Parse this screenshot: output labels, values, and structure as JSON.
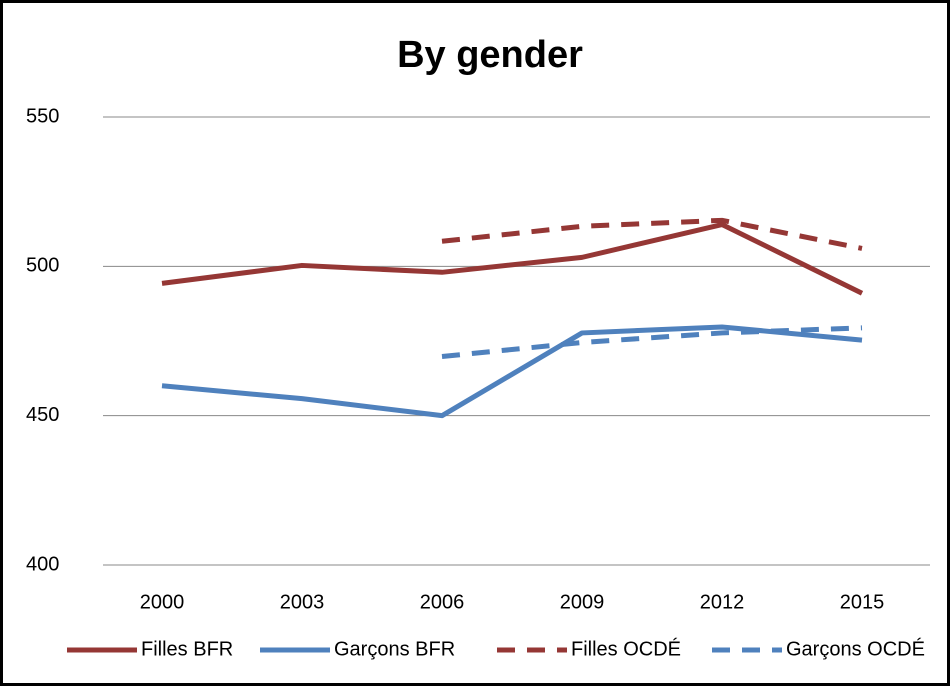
{
  "chart_data": {
    "type": "line",
    "title": "By gender",
    "categories": [
      "2000",
      "2003",
      "2006",
      "2009",
      "2012",
      "2015"
    ],
    "series": [
      {
        "name": "Filles BFR",
        "color": "#953735",
        "dash": false,
        "values": [
          494.3,
          500.3,
          498,
          503,
          514,
          491
        ]
      },
      {
        "name": "Garçons BFR",
        "color": "#4f81bd",
        "dash": false,
        "values": [
          460,
          455.7,
          450,
          477.7,
          479.7,
          475.3
        ]
      },
      {
        "name": "Filles OCDÉ",
        "color": "#953735",
        "dash": true,
        "values": [
          null,
          null,
          508.4,
          513.4,
          515.4,
          506
        ]
      },
      {
        "name": "Garçons OCDÉ",
        "color": "#4f81bd",
        "dash": true,
        "values": [
          null,
          null,
          469.8,
          474.5,
          477.7,
          479.4
        ]
      }
    ],
    "ylim": [
      400,
      550
    ],
    "yticks": [
      400,
      450,
      500,
      550
    ],
    "grid": true,
    "legend": "bottom"
  }
}
